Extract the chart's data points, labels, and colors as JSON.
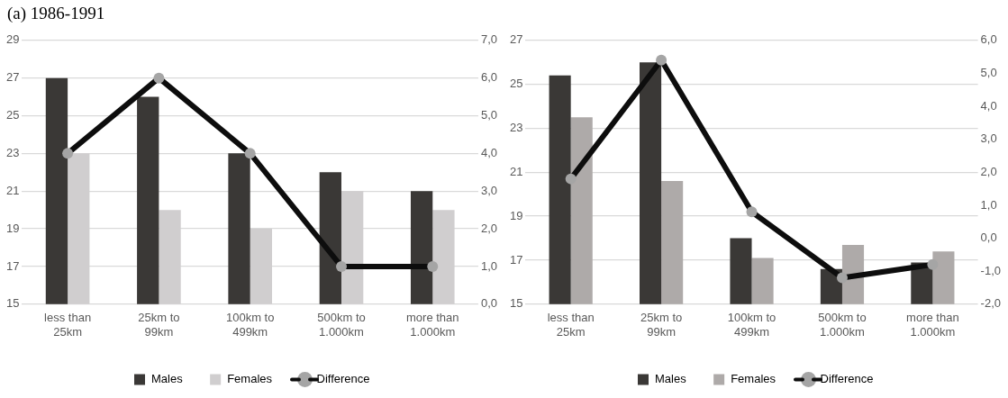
{
  "chart_data": [
    {
      "type": "bar",
      "title": "(a) 1986-1991",
      "categories": [
        "less than\n25km",
        "25km to\n99km",
        "100km to\n499km",
        "500km to\n1.000km",
        "more than\n1.000km"
      ],
      "series": [
        {
          "name": "Males",
          "color": "#3a3836",
          "values": [
            27,
            26,
            23,
            22,
            21
          ]
        },
        {
          "name": "Females",
          "color": "#d0cecf",
          "values": [
            23,
            20,
            19,
            21,
            20
          ]
        },
        {
          "name": "Difference",
          "type": "line",
          "axis": "y2",
          "color": "#0d0d0d",
          "values": [
            4,
            6,
            4,
            1,
            1
          ]
        }
      ],
      "ylim": [
        15,
        29
      ],
      "yticks": [
        15,
        17,
        19,
        21,
        23,
        25,
        27,
        29
      ],
      "y2lim": [
        0,
        7
      ],
      "y2ticks": [
        {
          "value": 0,
          "label": "0,0"
        },
        {
          "value": 1,
          "label": "1,0"
        },
        {
          "value": 2,
          "label": "2,0"
        },
        {
          "value": 3,
          "label": "3,0"
        },
        {
          "value": 4,
          "label": "4,0"
        },
        {
          "value": 5,
          "label": "5,0"
        },
        {
          "value": 6,
          "label": "6,0"
        },
        {
          "value": 7,
          "label": "7,0"
        }
      ],
      "grid": "y",
      "legend": "bottom",
      "marker": "circle"
    },
    {
      "type": "bar",
      "categories": [
        "less than\n25km",
        "25km to\n99km",
        "100km to\n499km",
        "500km to\n1.000km",
        "more than\n1.000km"
      ],
      "series": [
        {
          "name": "Males",
          "color": "#3a3836",
          "values": [
            25.4,
            26,
            18,
            16.6,
            16.9
          ]
        },
        {
          "name": "Females",
          "color": "#aeaaa9",
          "values": [
            23.5,
            20.6,
            17.1,
            17.7,
            17.4
          ]
        },
        {
          "name": "Difference",
          "type": "line",
          "axis": "y2",
          "color": "#0d0d0d",
          "values": [
            1.8,
            5.4,
            0.8,
            -1.2,
            -0.8
          ]
        }
      ],
      "ylim": [
        15,
        27
      ],
      "yticks": [
        15,
        17,
        19,
        21,
        23,
        25,
        27
      ],
      "y2lim": [
        -2,
        6
      ],
      "y2ticks": [
        {
          "value": -2,
          "label": "-2,0"
        },
        {
          "value": -1,
          "label": "-1,0"
        },
        {
          "value": 0,
          "label": "0,0"
        },
        {
          "value": 1,
          "label": "1,0"
        },
        {
          "value": 2,
          "label": "2,0"
        },
        {
          "value": 3,
          "label": "3,0"
        },
        {
          "value": 4,
          "label": "4,0"
        },
        {
          "value": 5,
          "label": "5,0"
        },
        {
          "value": 6,
          "label": "6,0"
        }
      ],
      "grid": "y",
      "legend": "bottom",
      "marker": "circle"
    }
  ]
}
